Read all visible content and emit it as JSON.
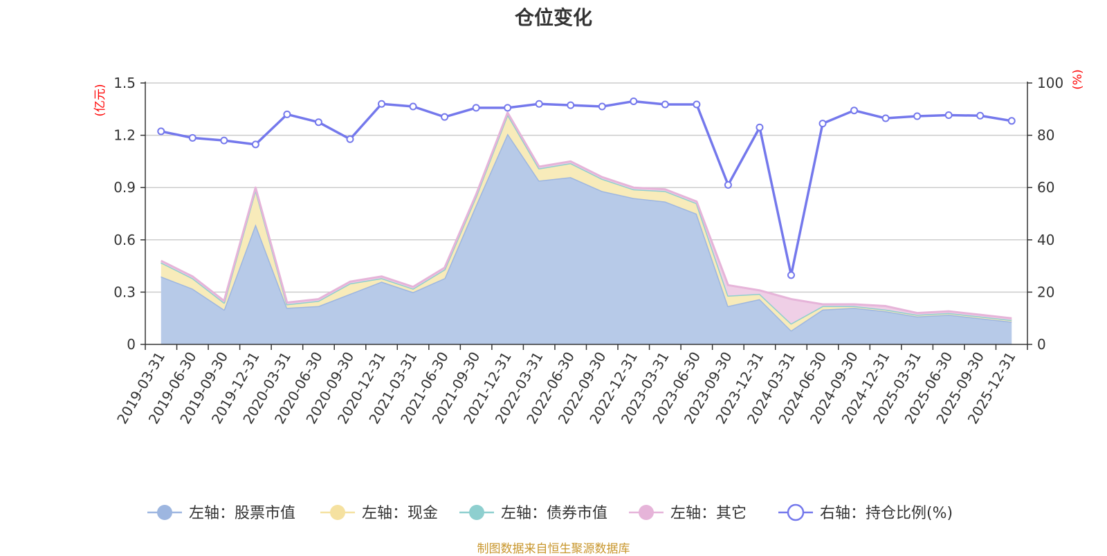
{
  "chart_data": {
    "type": "area",
    "title": "仓位变化",
    "left_axis_unit": "(亿元)",
    "right_axis_unit": "(%)",
    "left_ylim": [
      0,
      1.5
    ],
    "left_yticks": [
      "0",
      "0.3",
      "0.6",
      "0.9",
      "1.2",
      "1.5"
    ],
    "right_ylim": [
      0,
      100
    ],
    "right_yticks": [
      "0",
      "20",
      "40",
      "60",
      "80",
      "100"
    ],
    "grid": true,
    "legend_position": "bottom",
    "categories": [
      "2019-03-31",
      "2019-06-30",
      "2019-09-30",
      "2019-12-31",
      "2020-03-31",
      "2020-06-30",
      "2020-09-30",
      "2020-12-31",
      "2021-03-31",
      "2021-06-30",
      "2021-09-30",
      "2021-12-31",
      "2022-03-31",
      "2022-06-30",
      "2022-09-30",
      "2022-12-31",
      "2023-03-31",
      "2023-06-30",
      "2023-09-30",
      "2023-12-31",
      "2024-03-31",
      "2024-06-30",
      "2024-09-30",
      "2024-12-31",
      "2025-03-31",
      "2025-06-30",
      "2025-09-30",
      "2025-12-31"
    ],
    "series": [
      {
        "name": "左轴：股票市值",
        "axis": "left",
        "stacked": true,
        "color": "#9db6e0",
        "fill": "#b7cae8",
        "values": [
          0.39,
          0.32,
          0.2,
          0.69,
          0.21,
          0.22,
          0.29,
          0.36,
          0.3,
          0.38,
          0.8,
          1.21,
          0.94,
          0.96,
          0.88,
          0.84,
          0.82,
          0.75,
          0.22,
          0.26,
          0.08,
          0.2,
          0.21,
          0.19,
          0.16,
          0.17,
          0.15,
          0.13
        ]
      },
      {
        "name": "左轴：现金",
        "axis": "left",
        "stacked": true,
        "color": "#f5e1a0",
        "fill": "#f8ebba",
        "values": [
          0.08,
          0.06,
          0.04,
          0.2,
          0.02,
          0.03,
          0.06,
          0.02,
          0.02,
          0.05,
          0.05,
          0.11,
          0.07,
          0.08,
          0.07,
          0.05,
          0.06,
          0.06,
          0.06,
          0.03,
          0.04,
          0.02,
          0.01,
          0.01,
          0.01,
          0.01,
          0.01,
          0.01
        ]
      },
      {
        "name": "左轴：债券市值",
        "axis": "left",
        "stacked": true,
        "color": "#8ecfcf",
        "fill": "#a9dcdc",
        "values": [
          0,
          0,
          0,
          0,
          0,
          0,
          0,
          0,
          0,
          0,
          0,
          0,
          0,
          0,
          0,
          0,
          0,
          0,
          0,
          0,
          0,
          0,
          0,
          0,
          0,
          0,
          0,
          0
        ]
      },
      {
        "name": "左轴：其它",
        "axis": "left",
        "stacked": true,
        "color": "#e6b4d9",
        "fill": "#efcfe6",
        "values": [
          0.01,
          0.01,
          0.01,
          0.01,
          0.01,
          0.01,
          0.01,
          0.01,
          0.01,
          0.01,
          0.01,
          0.01,
          0.01,
          0.01,
          0.01,
          0.01,
          0.01,
          0.01,
          0.06,
          0.02,
          0.14,
          0.01,
          0.01,
          0.02,
          0.01,
          0.01,
          0.01,
          0.01
        ]
      },
      {
        "name": "右轴：持仓比例(%)",
        "axis": "right",
        "color": "#7478ec",
        "values": [
          81.5,
          79,
          78,
          76.5,
          88,
          85,
          78.5,
          92,
          91,
          87,
          90.5,
          90.5,
          92,
          91.5,
          91,
          93,
          91.8,
          91.8,
          61,
          83,
          26.5,
          84.5,
          89.5,
          86.5,
          87.3,
          87.7,
          87.5,
          85.5
        ]
      }
    ]
  },
  "source_note": "制图数据来自恒生聚源数据库"
}
